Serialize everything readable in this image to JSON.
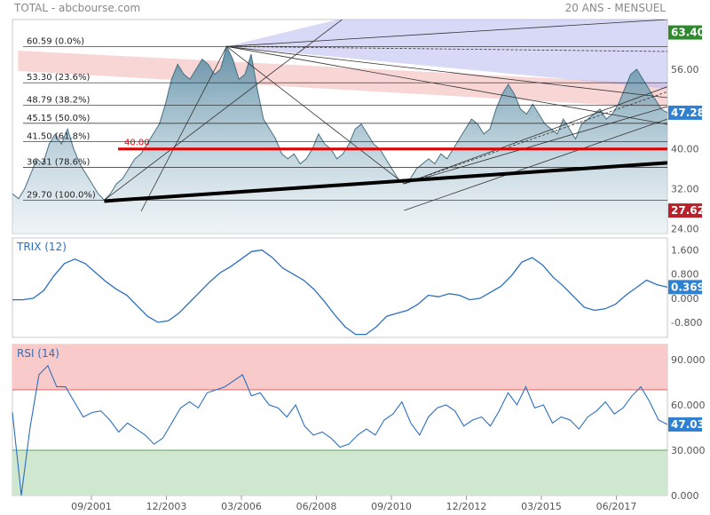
{
  "header": {
    "left": "TOTAL - abcbourse.com",
    "right": "20 ANS - MENSUEL"
  },
  "colors": {
    "area_fill_top": "#5d8fa6",
    "area_fill_bottom": "#dfe9ef",
    "price_line": "#456f82",
    "last_price_badge": "#2f80d1",
    "high_badge": "#2f8a2f",
    "low_badge": "#b8202a",
    "resistance_line": "#e00000",
    "fan_fill": "#b8b8f0",
    "channel_fill": "#f7c8c8",
    "indicator_line": "#2b6fc0",
    "rsi_overbought_zone": "#f8caca",
    "rsi_oversold_zone": "#cfe6cf"
  },
  "chart_data": [
    {
      "type": "area",
      "title": "",
      "x_ticks": [
        "09/2001",
        "12/2003",
        "03/2006",
        "06/2008",
        "09/2010",
        "12/2012",
        "03/2015",
        "06/2017"
      ],
      "y_ticks": [
        24.0,
        32.0,
        40.0,
        48.0,
        56.0,
        64.0
      ],
      "ylim": [
        23,
        66
      ],
      "last_value": "47.28",
      "high_label": "63.40",
      "low_label": "27.62",
      "resistance": {
        "value": 40.0,
        "label": "40.00"
      },
      "fibonacci_levels": [
        {
          "value": 60.59,
          "label": "60.59  (0.0%)"
        },
        {
          "value": 53.3,
          "label": "53.30  (23.6%)"
        },
        {
          "value": 48.79,
          "label": "48.79  (38.2%)"
        },
        {
          "value": 45.15,
          "label": "45.15  (50.0%)"
        },
        {
          "value": 41.5,
          "label": "41.50  (61.8%)"
        },
        {
          "value": 36.31,
          "label": "36.31  (78.6%)"
        },
        {
          "value": 29.7,
          "label": "29.70  (100.0%)"
        }
      ],
      "series": [
        {
          "values": [
            31,
            30,
            32,
            35,
            38,
            37,
            41,
            43,
            41,
            44,
            40,
            37,
            35,
            33,
            31,
            29.7,
            31,
            33,
            34,
            36,
            38,
            39,
            41,
            43,
            45,
            49,
            54,
            57,
            55,
            54,
            56,
            58,
            57,
            55,
            56,
            60.6,
            58,
            54,
            55,
            59,
            52,
            46,
            44,
            42,
            39,
            38,
            39,
            37,
            38,
            40,
            43,
            41,
            40,
            38,
            39,
            41,
            44,
            45,
            43,
            41,
            40,
            38,
            36,
            34,
            33,
            34,
            36,
            37,
            38,
            37,
            39,
            38,
            40,
            42,
            44,
            46,
            45,
            43,
            44,
            48,
            51,
            53,
            51,
            48,
            47,
            49,
            47,
            45,
            44,
            43,
            46,
            44,
            42,
            45,
            46,
            47,
            48,
            46,
            47,
            49,
            52,
            55,
            56,
            54,
            52,
            50,
            48,
            47.28
          ]
        }
      ]
    },
    {
      "type": "line",
      "title": "TRIX (12)",
      "y_ticks": [
        -0.8,
        0.0,
        0.8,
        1.6
      ],
      "ylim": [
        -1.3,
        2.0
      ],
      "last_value": "0.369",
      "series": [
        {
          "name": "TRIX (12)",
          "values": [
            -0.05,
            -0.05,
            0.0,
            0.25,
            0.75,
            1.15,
            1.3,
            1.15,
            0.85,
            0.55,
            0.3,
            0.1,
            -0.25,
            -0.6,
            -0.8,
            -0.75,
            -0.5,
            -0.15,
            0.2,
            0.55,
            0.85,
            1.05,
            1.3,
            1.55,
            1.6,
            1.35,
            1.0,
            0.8,
            0.6,
            0.3,
            -0.1,
            -0.55,
            -0.95,
            -1.2,
            -1.2,
            -0.95,
            -0.6,
            -0.5,
            -0.4,
            -0.2,
            0.1,
            0.05,
            0.15,
            0.1,
            -0.05,
            0.0,
            0.2,
            0.4,
            0.75,
            1.2,
            1.35,
            1.1,
            0.7,
            0.4,
            0.05,
            -0.3,
            -0.4,
            -0.35,
            -0.2,
            0.1,
            0.35,
            0.6,
            0.45,
            0.369
          ]
        }
      ]
    },
    {
      "type": "line",
      "title": "RSI (14)",
      "y_ticks": [
        0.0,
        30.0,
        60.0,
        90.0
      ],
      "ylim": [
        0,
        100
      ],
      "overbought": 70,
      "oversold": 30,
      "last_value": "47.03",
      "series": [
        {
          "name": "RSI (14)",
          "values": [
            55,
            0,
            45,
            80,
            86,
            72,
            72,
            62,
            52,
            55,
            56,
            50,
            42,
            48,
            44,
            40,
            34,
            38,
            48,
            58,
            62,
            58,
            68,
            70,
            72,
            76,
            80,
            66,
            68,
            60,
            58,
            52,
            60,
            46,
            40,
            42,
            38,
            32,
            34,
            40,
            44,
            40,
            50,
            54,
            62,
            48,
            40,
            52,
            58,
            60,
            56,
            46,
            50,
            52,
            46,
            56,
            68,
            60,
            72,
            58,
            60,
            48,
            52,
            50,
            44,
            52,
            56,
            62,
            54,
            58,
            66,
            72,
            62,
            50,
            47.03
          ]
        }
      ]
    }
  ]
}
